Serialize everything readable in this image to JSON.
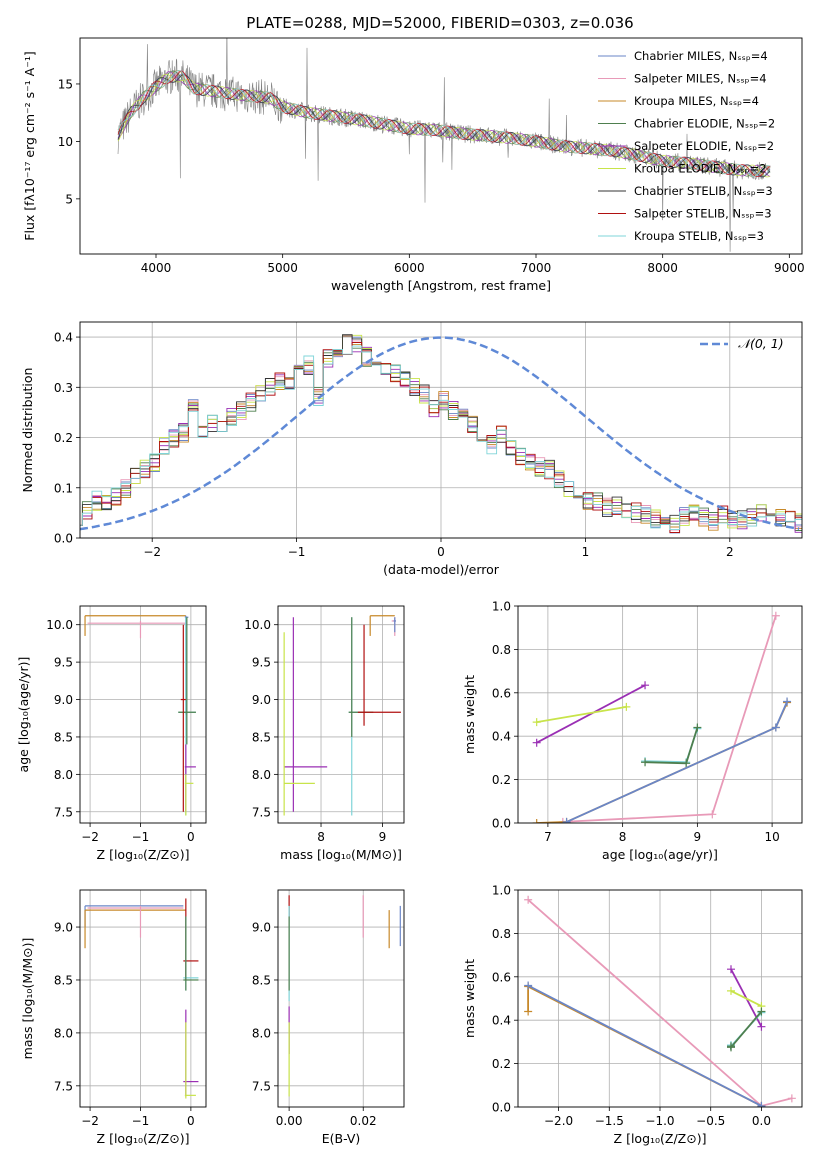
{
  "chart_data": [
    {
      "id": "spectrum",
      "type": "line",
      "title": "PLATE=0288, MJD=52000, FIBERID=0303, z=0.036",
      "xlabel": "wavelength [Angstrom, rest frame]",
      "ylabel": "Flux [fλ10⁻¹⁷ erg cm⁻² s⁻¹ A⁻¹]",
      "xlim": [
        3400,
        9100
      ],
      "ylim": [
        0.2,
        19
      ],
      "xticks": [
        4000,
        5000,
        6000,
        7000,
        8000,
        9000
      ],
      "yticks": [
        5,
        10,
        15
      ],
      "grid": false,
      "legend_position": "top-right",
      "series": [
        {
          "name": "Chabrier MILES, Nₛₛₚ=4",
          "color": "#6a86c7"
        },
        {
          "name": "Salpeter MILES, Nₛₛₚ=4",
          "color": "#e89ab8"
        },
        {
          "name": "Kroupa MILES, Nₛₛₚ=4",
          "color": "#c7892a"
        },
        {
          "name": "Chabrier ELODIE, Nₛₛₚ=2",
          "color": "#4e7f4e"
        },
        {
          "name": "Salpeter ELODIE, Nₛₛₚ=2",
          "color": "#9a2fb4"
        },
        {
          "name": "Kroupa ELODIE, Nₛₛₚ=2",
          "color": "#c8e44a"
        },
        {
          "name": "Chabrier STELIB, Nₛₛₚ=3",
          "color": "#333333"
        },
        {
          "name": "Salpeter STELIB, Nₛₛₚ=3",
          "color": "#b01010"
        },
        {
          "name": "Kroupa STELIB, Nₛₛₚ=3",
          "color": "#7fd4d8"
        }
      ],
      "data_trend": {
        "x": [
          3700,
          3800,
          3900,
          4000,
          4100,
          4200,
          4300,
          4500,
          4700,
          4900,
          5000,
          5200,
          5400,
          5600,
          5800,
          6000,
          6200,
          6400,
          6600,
          6800,
          7000,
          7200,
          7400,
          7600,
          7800,
          8000,
          8200,
          8400,
          8600,
          8800
        ],
        "y": [
          10.5,
          12.5,
          13.8,
          14.8,
          15.6,
          15.7,
          14.6,
          14.3,
          14.0,
          13.8,
          13.0,
          12.5,
          12.2,
          11.9,
          11.5,
          11.1,
          11.0,
          10.7,
          10.5,
          10.3,
          10.0,
          9.6,
          9.4,
          9.2,
          8.8,
          8.3,
          8.1,
          7.8,
          7.5,
          7.4
        ]
      }
    },
    {
      "id": "residuals",
      "type": "line",
      "xlabel": "(data-model)/error",
      "ylabel": "Normed distribution",
      "xlim": [
        -2.5,
        2.5
      ],
      "ylim": [
        0,
        0.43
      ],
      "xticks": [
        -2,
        -1,
        0,
        1,
        2
      ],
      "yticks": [
        0.0,
        0.1,
        0.2,
        0.3,
        0.4
      ],
      "grid": true,
      "legend_position": "top-right",
      "legend_label": "𝒩(0, 1)",
      "gaussian": {
        "mu": 0,
        "sigma": 1,
        "color": "#5f89d6"
      },
      "hist_bin_width": 0.1,
      "hist_mean": [
        0.045,
        0.055,
        0.075,
        0.07,
        0.08,
        0.1,
        0.12,
        0.14,
        0.15,
        0.18,
        0.2,
        0.21,
        0.265,
        0.22,
        0.23,
        0.215,
        0.24,
        0.255,
        0.27,
        0.29,
        0.3,
        0.315,
        0.31,
        0.33,
        0.345,
        0.28,
        0.36,
        0.37,
        0.385,
        0.39,
        0.36,
        0.345,
        0.34,
        0.33,
        0.315,
        0.3,
        0.285,
        0.26,
        0.275,
        0.255,
        0.25,
        0.225,
        0.2,
        0.185,
        0.21,
        0.175,
        0.16,
        0.15,
        0.14,
        0.135,
        0.12,
        0.1,
        0.085,
        0.075,
        0.07,
        0.06,
        0.065,
        0.055,
        0.05,
        0.045,
        0.04,
        0.035,
        0.03,
        0.045,
        0.05,
        0.04,
        0.035,
        0.045,
        0.04,
        0.035,
        0.04,
        0.05,
        0.045,
        0.04,
        0.035,
        0.03
      ]
    },
    {
      "id": "age-vs-Z",
      "type": "scatter",
      "xlabel": "Z [log₁₀(Z/Z⊙)]",
      "ylabel": "age  [log₁₀(age/yr)]",
      "xlim": [
        -2.2,
        0.3
      ],
      "ylim": [
        7.35,
        10.25
      ],
      "xticks": [
        -2,
        -1,
        0
      ],
      "yticks": [
        7.5,
        8.0,
        8.5,
        9.0,
        9.5,
        10.0
      ],
      "grid": true,
      "errorbars": [
        {
          "color": "#c7892a",
          "x": -2.1,
          "x0": -2.1,
          "x1": -0.1,
          "y": 10.12,
          "y0": 9.85,
          "y1": 10.12
        },
        {
          "color": "#e89ab8",
          "x": -1.0,
          "x0": -2.05,
          "x1": -0.1,
          "y": 10.02,
          "y0": 9.82,
          "y1": 10.05
        },
        {
          "color": "#6a86c7",
          "x": -0.1,
          "x0": -0.12,
          "x1": -0.05,
          "y": 10.1,
          "y0": 8.8,
          "y1": 10.12
        },
        {
          "color": "#7fd4d8",
          "x": -0.1,
          "x0": -0.25,
          "x1": 0.1,
          "y": 8.83,
          "y0": 7.45,
          "y1": 10.1
        },
        {
          "color": "#4e7f4e",
          "x": -0.08,
          "x0": -0.25,
          "x1": 0.1,
          "y": 8.83,
          "y0": 8.4,
          "y1": 10.1
        },
        {
          "color": "#9a2fb4",
          "x": -0.1,
          "x0": -0.12,
          "x1": 0.1,
          "y": 8.1,
          "y0": 7.5,
          "y1": 8.4
        },
        {
          "color": "#c8e44a",
          "x": -0.1,
          "x0": -0.12,
          "x1": 0.05,
          "y": 7.88,
          "y0": 7.45,
          "y1": 8.0
        },
        {
          "color": "#b01010",
          "x": -0.15,
          "x0": -0.2,
          "x1": -0.1,
          "y": 9.0,
          "y0": 7.5,
          "y1": 10.0
        }
      ]
    },
    {
      "id": "age-vs-mass",
      "type": "scatter",
      "xlabel": "mass [log₁₀(M/M⊙)]",
      "xlim": [
        7.3,
        9.35
      ],
      "ylim": [
        7.35,
        10.25
      ],
      "xticks": [
        8,
        9
      ],
      "yticks": [
        7.5,
        8.0,
        8.5,
        9.0,
        9.5,
        10.0
      ],
      "grid": true,
      "errorbars": [
        {
          "color": "#c7892a",
          "x": 8.8,
          "x0": 8.8,
          "x1": 9.2,
          "y": 10.12,
          "y0": 9.85,
          "y1": 10.12
        },
        {
          "color": "#e89ab8",
          "x": 9.2,
          "x0": 9.15,
          "x1": 9.22,
          "y": 10.05,
          "y0": 9.85,
          "y1": 10.1
        },
        {
          "color": "#6a86c7",
          "x": 9.2,
          "x0": 9.18,
          "x1": 9.22,
          "y": 10.05,
          "y0": 9.9,
          "y1": 10.1
        },
        {
          "color": "#7fd4d8",
          "x": 8.5,
          "x0": 8.45,
          "x1": 8.85,
          "y": 8.83,
          "y0": 7.45,
          "y1": 10.1
        },
        {
          "color": "#4e7f4e",
          "x": 8.5,
          "x0": 8.45,
          "x1": 8.85,
          "y": 8.83,
          "y0": 8.5,
          "y1": 10.1
        },
        {
          "color": "#b01010",
          "x": 8.7,
          "x0": 8.6,
          "x1": 9.3,
          "y": 8.83,
          "y0": 8.65,
          "y1": 10.0
        },
        {
          "color": "#9a2fb4",
          "x": 7.55,
          "x0": 7.4,
          "x1": 8.1,
          "y": 8.1,
          "y0": 7.5,
          "y1": 10.1
        },
        {
          "color": "#c8e44a",
          "x": 7.4,
          "x0": 7.4,
          "x1": 7.9,
          "y": 7.88,
          "y0": 7.45,
          "y1": 9.9
        }
      ]
    },
    {
      "id": "weight-vs-age",
      "type": "line",
      "xlabel": "age  [log₁₀(age/yr)]",
      "ylabel": "mass weight",
      "xlim": [
        6.6,
        10.4
      ],
      "ylim": [
        0.0,
        1.0
      ],
      "xticks": [
        7,
        8,
        9,
        10
      ],
      "yticks": [
        0.0,
        0.2,
        0.4,
        0.6,
        0.8,
        1.0
      ],
      "grid": true,
      "lines": [
        {
          "color": "#9a2fb4",
          "x": [
            6.85,
            8.3
          ],
          "y": [
            0.37,
            0.635
          ]
        },
        {
          "color": "#c8e44a",
          "x": [
            6.85,
            8.05
          ],
          "y": [
            0.465,
            0.535
          ]
        },
        {
          "color": "#7fd4d8",
          "x": [
            8.3,
            8.85,
            9.0
          ],
          "y": [
            0.285,
            0.28,
            0.435
          ]
        },
        {
          "color": "#4e7f4e",
          "x": [
            8.3,
            8.85,
            9.0
          ],
          "y": [
            0.28,
            0.275,
            0.44
          ]
        },
        {
          "color": "#e89ab8",
          "x": [
            7.2,
            9.2,
            10.05
          ],
          "y": [
            0.005,
            0.04,
            0.955
          ]
        },
        {
          "color": "#c7892a",
          "x": [
            6.85,
            7.25,
            10.05,
            10.2
          ],
          "y": [
            0.0,
            0.005,
            0.44,
            0.555
          ]
        },
        {
          "color": "#6a86c7",
          "x": [
            7.25,
            10.05,
            10.2
          ],
          "y": [
            0.005,
            0.44,
            0.56
          ]
        }
      ]
    },
    {
      "id": "mass-vs-Z",
      "type": "scatter",
      "xlabel": "Z [log₁₀(Z/Z⊙)]",
      "ylabel": "mass [log₁₀(M/M⊙)]",
      "xlim": [
        -2.2,
        0.3
      ],
      "ylim": [
        7.3,
        9.35
      ],
      "xticks": [
        -2,
        -1,
        0
      ],
      "yticks": [
        7.5,
        8.0,
        8.5,
        9.0
      ],
      "grid": true,
      "errorbars": [
        {
          "color": "#6a86c7",
          "x": -2.1,
          "x0": -2.1,
          "x1": -0.15,
          "y": 9.2,
          "y0": 9.0,
          "y1": 9.2
        },
        {
          "color": "#c7892a",
          "x": -2.1,
          "x0": -2.1,
          "x1": -0.1,
          "y": 9.16,
          "y0": 8.8,
          "y1": 9.16
        },
        {
          "color": "#e89ab8",
          "x": -1.0,
          "x0": -2.05,
          "x1": -0.15,
          "y": 9.18,
          "y0": 8.9,
          "y1": 9.2
        },
        {
          "color": "#b01010",
          "x": -0.1,
          "x0": -0.15,
          "x1": 0.15,
          "y": 8.68,
          "y0": 8.5,
          "y1": 9.27
        },
        {
          "color": "#7fd4d8",
          "x": -0.1,
          "x0": -0.15,
          "x1": 0.15,
          "y": 8.52,
          "y0": 8.4,
          "y1": 9.1
        },
        {
          "color": "#4e7f4e",
          "x": -0.1,
          "x0": -0.15,
          "x1": 0.15,
          "y": 8.5,
          "y0": 8.4,
          "y1": 9.1
        },
        {
          "color": "#9a2fb4",
          "x": -0.1,
          "x0": -0.15,
          "x1": 0.15,
          "y": 7.54,
          "y0": 7.4,
          "y1": 8.22
        },
        {
          "color": "#c8e44a",
          "x": -0.1,
          "x0": -0.12,
          "x1": 0.1,
          "y": 7.41,
          "y0": 7.38,
          "y1": 8.1
        }
      ]
    },
    {
      "id": "mass-vs-ebv",
      "type": "scatter",
      "xlabel": "E(B-V)",
      "xlim": [
        -0.003,
        0.031
      ],
      "ylim": [
        7.3,
        9.35
      ],
      "xticks": [
        0.0,
        0.02
      ],
      "xtick_labels": [
        "0.00",
        "0.02"
      ],
      "yticks": [
        7.5,
        8.0,
        8.5,
        9.0
      ],
      "grid": true,
      "errorbars": [
        {
          "color": "#b01010",
          "x": 0.0,
          "y": 9.2,
          "y0": 9.1,
          "y1": 9.3
        },
        {
          "color": "#7fd4d8",
          "x": 0.0,
          "y": 8.55,
          "y0": 8.3,
          "y1": 9.2
        },
        {
          "color": "#4e7f4e",
          "x": 0.0,
          "y": 8.6,
          "y0": 8.4,
          "y1": 9.1
        },
        {
          "color": "#9a2fb4",
          "x": 0.0,
          "y": 8.0,
          "y0": 7.8,
          "y1": 8.25
        },
        {
          "color": "#c8e44a",
          "x": 0.0,
          "y": 7.6,
          "y0": 7.4,
          "y1": 8.1
        },
        {
          "color": "#e89ab8",
          "x": 0.02,
          "y": 9.1,
          "y0": 8.9,
          "y1": 9.3
        },
        {
          "color": "#c7892a",
          "x": 0.027,
          "y": 9.0,
          "y0": 8.8,
          "y1": 9.16
        },
        {
          "color": "#6a86c7",
          "x": 0.03,
          "y": 9.0,
          "y0": 8.82,
          "y1": 9.2
        }
      ]
    },
    {
      "id": "weight-vs-Z",
      "type": "line",
      "xlabel": "Z [log₁₀(Z/Z⊙)]",
      "ylabel": "mass weight",
      "xlim": [
        -2.4,
        0.4
      ],
      "ylim": [
        0.0,
        1.0
      ],
      "xticks": [
        -2.0,
        -1.5,
        -1.0,
        -0.5,
        0.0
      ],
      "xtick_labels": [
        "−2.0",
        "−1.5",
        "−1.0",
        "−0.5",
        "0.0"
      ],
      "yticks": [
        0.0,
        0.2,
        0.4,
        0.6,
        0.8,
        1.0
      ],
      "grid": true,
      "lines": [
        {
          "color": "#e89ab8",
          "x": [
            -2.3,
            0.0,
            0.3
          ],
          "y": [
            0.955,
            0.005,
            0.04
          ]
        },
        {
          "color": "#c7892a",
          "x": [
            -2.3,
            -2.3,
            0.0
          ],
          "y": [
            0.44,
            0.555,
            0.005
          ]
        },
        {
          "color": "#6a86c7",
          "x": [
            -2.3,
            0.0
          ],
          "y": [
            0.56,
            0.005
          ]
        },
        {
          "color": "#9a2fb4",
          "x": [
            -0.3,
            0.0
          ],
          "y": [
            0.635,
            0.37
          ]
        },
        {
          "color": "#c8e44a",
          "x": [
            -0.3,
            0.0
          ],
          "y": [
            0.535,
            0.465
          ]
        },
        {
          "color": "#7fd4d8",
          "x": [
            -0.3,
            -0.3,
            0.0
          ],
          "y": [
            0.285,
            0.28,
            0.435
          ]
        },
        {
          "color": "#4e7f4e",
          "x": [
            -0.3,
            -0.3,
            0.0
          ],
          "y": [
            0.28,
            0.275,
            0.44
          ]
        }
      ]
    }
  ]
}
